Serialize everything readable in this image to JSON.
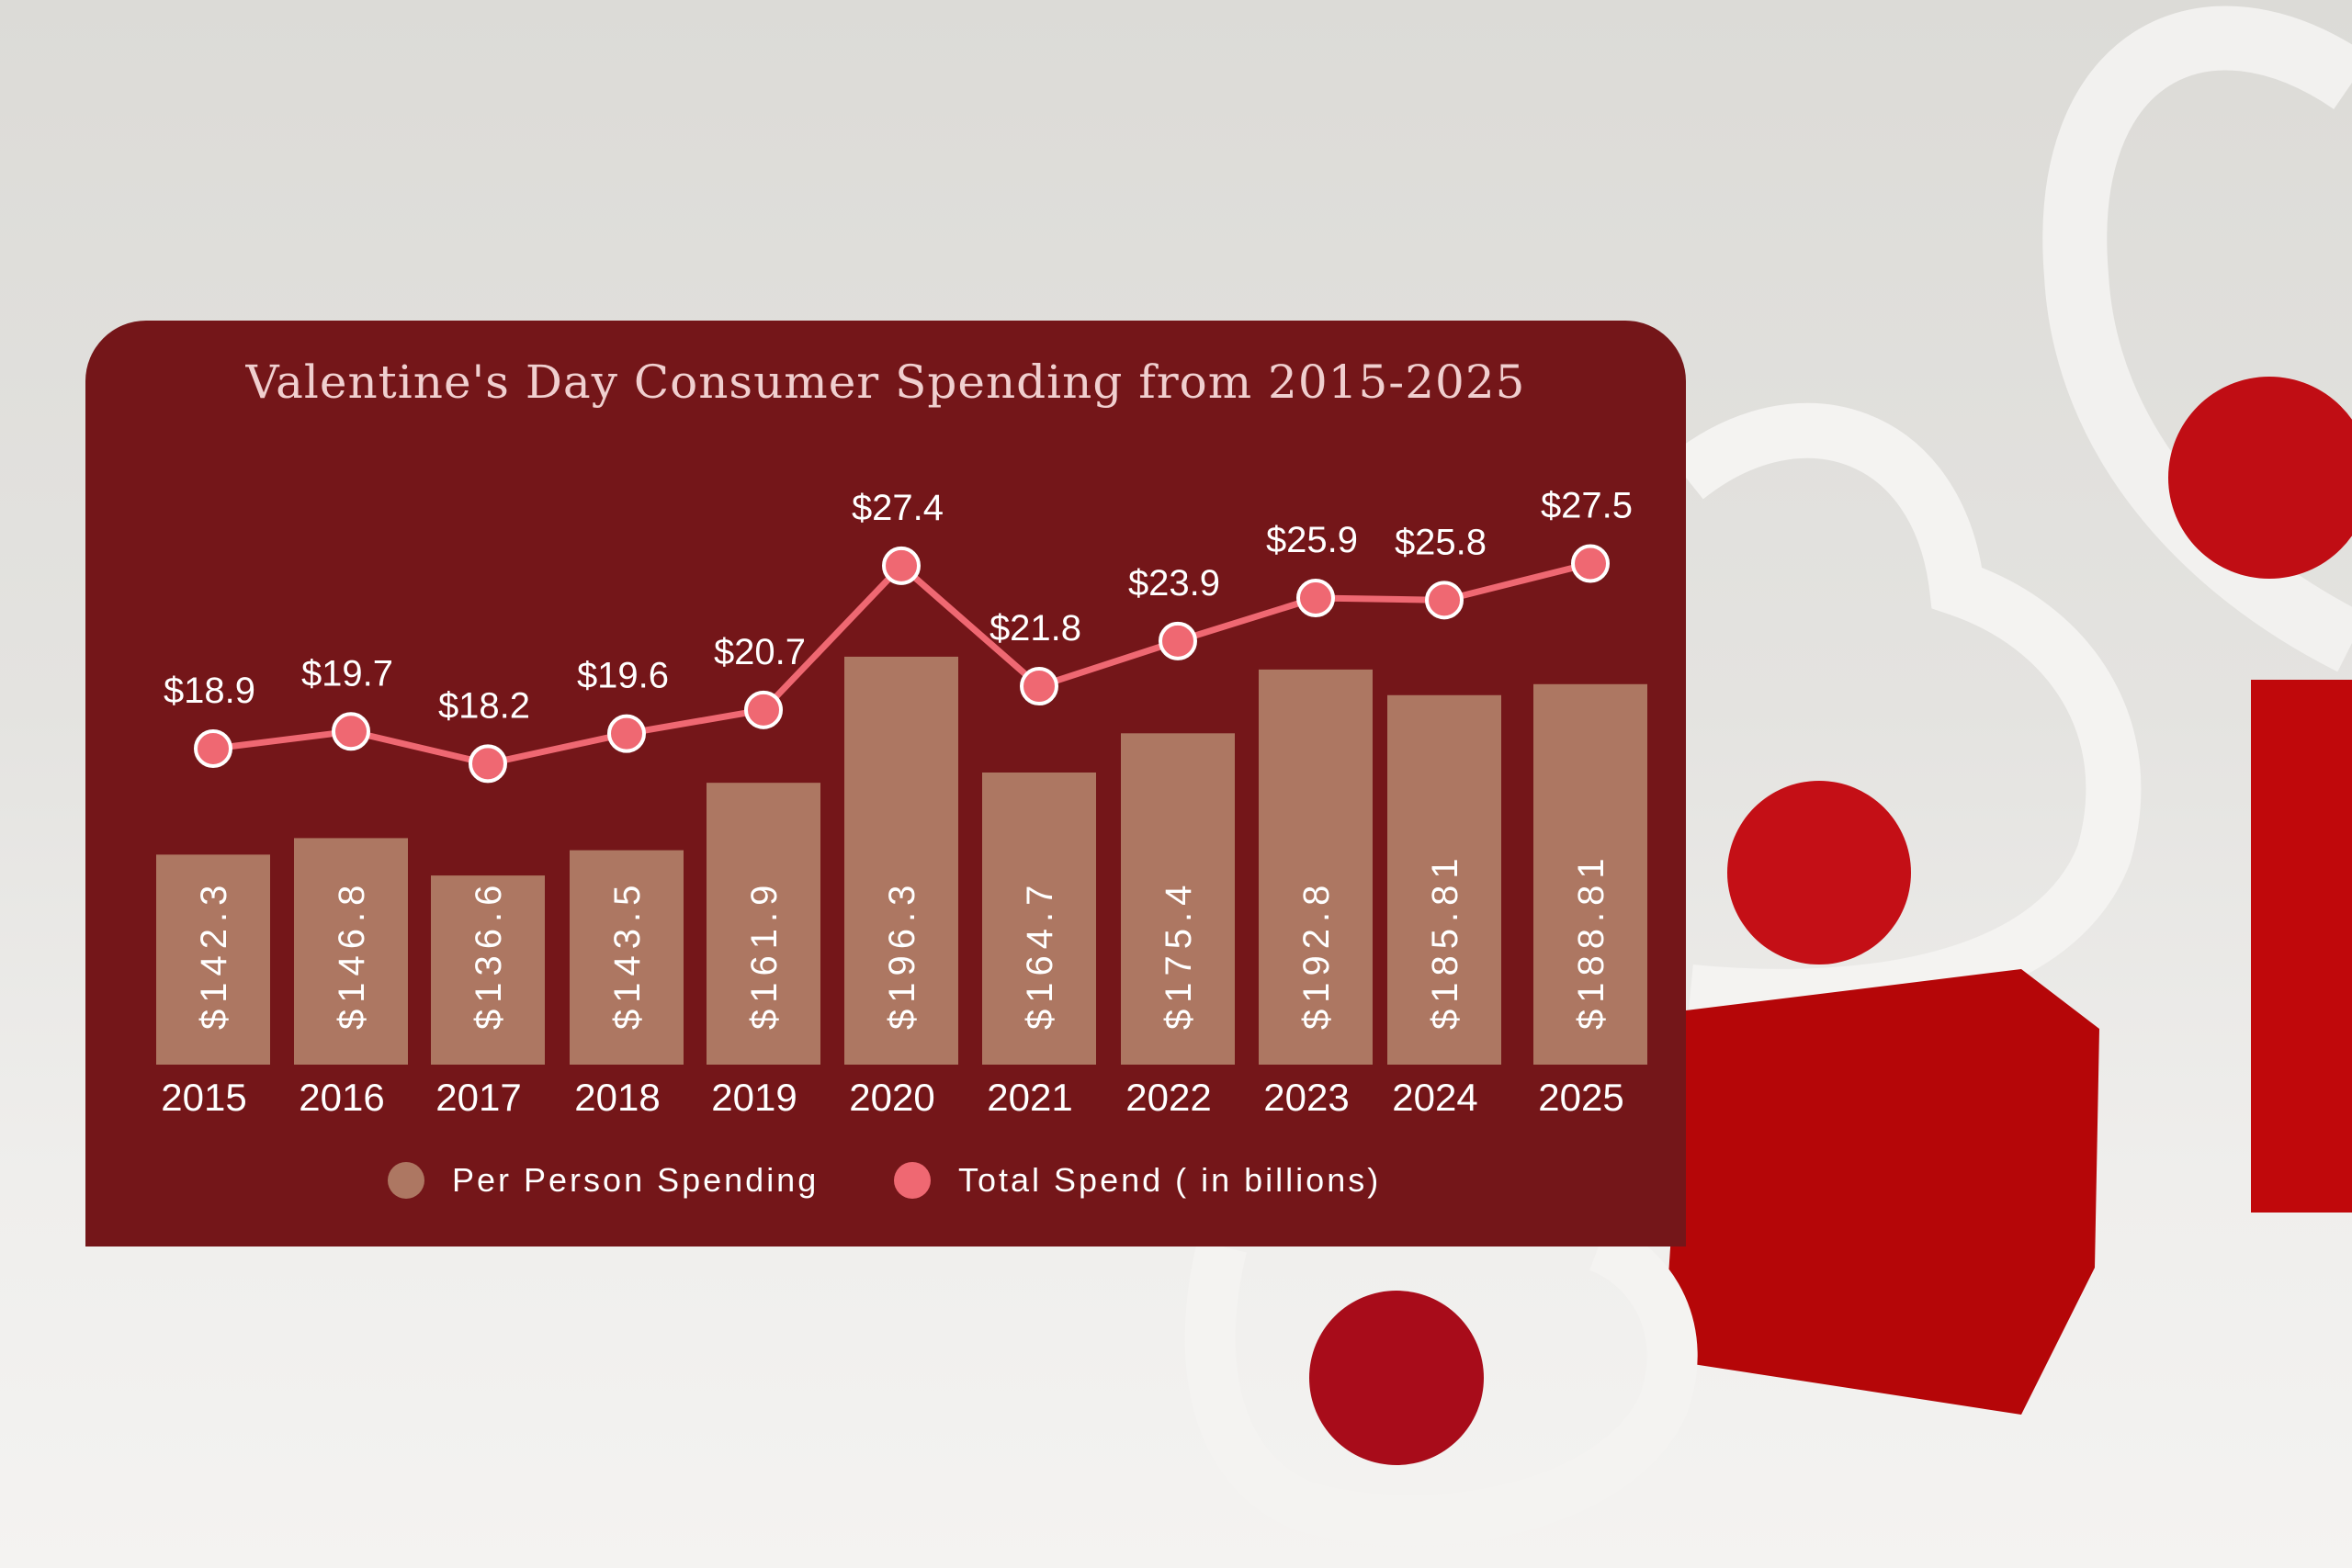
{
  "colors": {
    "card": "#741619",
    "bar": "#ad7762",
    "line": "#ef6872",
    "text": "#ffffff",
    "title": "#f0cfcf"
  },
  "chart_data": {
    "type": "bar+line",
    "title": "Valentine's Day Consumer Spending from 2015-2025",
    "categories": [
      "2015",
      "2016",
      "2017",
      "2018",
      "2019",
      "2020",
      "2021",
      "2022",
      "2023",
      "2024",
      "2025"
    ],
    "series": [
      {
        "name": "Per Person Spending",
        "type": "bar",
        "values": [
          142.3,
          146.8,
          136.6,
          143.5,
          161.9,
          196.3,
          164.7,
          175.4,
          192.8,
          185.81,
          188.81
        ],
        "labels": [
          "$142.3",
          "$146.8",
          "$136.6",
          "$143.5",
          "$161.9",
          "$196.3",
          "$164.7",
          "$175.4",
          "$192.8",
          "$185.81",
          "$188.81"
        ]
      },
      {
        "name": "Total Spend ( in billions)",
        "type": "line",
        "values": [
          18.9,
          19.7,
          18.2,
          19.6,
          20.7,
          27.4,
          21.8,
          23.9,
          25.9,
          25.8,
          27.5
        ],
        "labels": [
          "$18.9",
          "$19.7",
          "$18.2",
          "$19.6",
          "$20.7",
          "$27.4",
          "$21.8",
          "$23.9",
          "$25.9",
          "$25.8",
          "$27.5"
        ]
      }
    ],
    "legend_position": "bottom",
    "grid": false
  }
}
